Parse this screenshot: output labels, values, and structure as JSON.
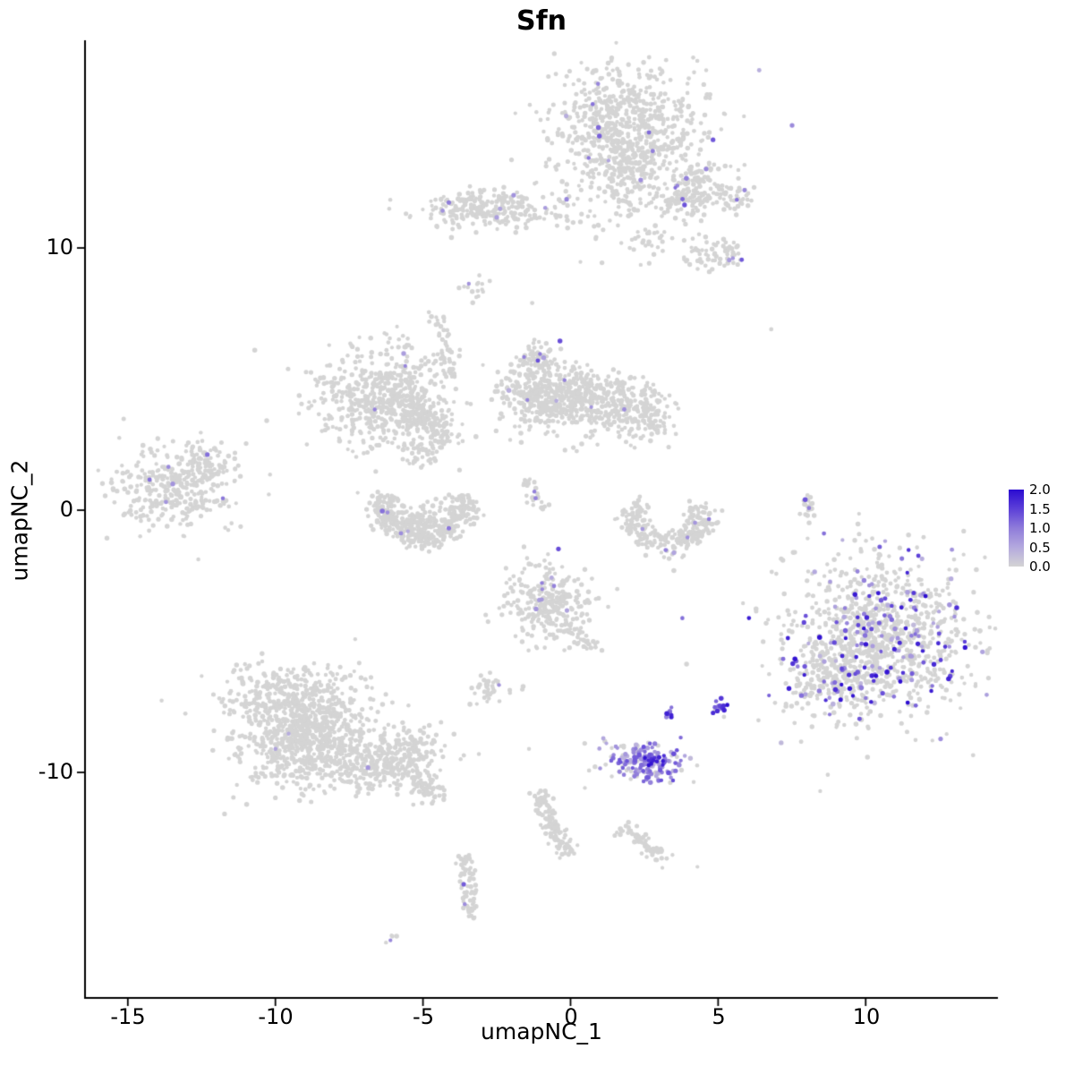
{
  "title": "Sfn",
  "axes": {
    "x": {
      "label": "umapNC_1",
      "ticks": [
        {
          "v": -15,
          "label": "-15"
        },
        {
          "v": -10,
          "label": "-10"
        },
        {
          "v": -5,
          "label": "-5"
        },
        {
          "v": 0,
          "label": "0"
        },
        {
          "v": 5,
          "label": "5"
        },
        {
          "v": 10,
          "label": "10"
        }
      ]
    },
    "y": {
      "label": "umapNC_2",
      "ticks": [
        {
          "v": 10,
          "label": "10"
        },
        {
          "v": 0,
          "label": "0"
        },
        {
          "v": -10,
          "label": "-10"
        }
      ]
    }
  },
  "legend": {
    "labels": [
      "2.0",
      "1.5",
      "1.0",
      "0.5",
      "0.0"
    ]
  },
  "chart_data": {
    "type": "scatter",
    "title": "Sfn",
    "xlabel": "umapNC_1",
    "ylabel": "umapNC_2",
    "xlim": [
      -16.45,
      14.48
    ],
    "ylim": [
      -18.6,
      17.92
    ],
    "grid": false,
    "legend_position": "right",
    "point_color_scale": {
      "domain": [
        0,
        2
      ],
      "stops": [
        [
          0,
          "#D4D4D4"
        ],
        [
          0.5,
          "#B4A9DE"
        ],
        [
          1,
          "#8F7CDA"
        ],
        [
          1.5,
          "#5C40D8"
        ],
        [
          2,
          "#2B0BD1"
        ]
      ]
    },
    "background_point_color": "#D4D4D4",
    "seed": 42,
    "clusters": [
      {
        "type": "gauss",
        "cx": 1.9,
        "cy": 14.4,
        "sx": 1.15,
        "sy": 1.3,
        "n": 650,
        "frac": 0.015,
        "emin": 0.4,
        "emax": 1.3
      },
      {
        "type": "gauss",
        "cx": 1.9,
        "cy": 14.4,
        "sx": 1.9,
        "sy": 1.9,
        "n": 110,
        "frac": 0.01,
        "emin": 0.4,
        "emax": 1.0
      },
      {
        "type": "gauss",
        "cx": 1.9,
        "cy": 12.7,
        "sx": 0.5,
        "sy": 0.6,
        "n": 80,
        "frac": 0.01,
        "emin": 0.4,
        "emax": 1.0
      },
      {
        "type": "gauss",
        "cx": 4.1,
        "cy": 12.2,
        "sx": 0.55,
        "sy": 0.45,
        "n": 130,
        "frac": 0.03,
        "emin": 0.5,
        "emax": 1.5
      },
      {
        "type": "gauss",
        "cx": 5.7,
        "cy": 12.0,
        "sx": 0.35,
        "sy": 0.3,
        "n": 45,
        "frac": 0.06,
        "emin": 0.8,
        "emax": 1.4
      },
      {
        "type": "line",
        "x0": 3.0,
        "y0": 11.5,
        "x1": 4.0,
        "y1": 12.0,
        "w": 0.25,
        "n": 35,
        "frac": 0,
        "emin": 0,
        "emax": 0
      },
      {
        "type": "gauss",
        "cx": -2.3,
        "cy": 11.4,
        "sx": 1.5,
        "sy": 0.38,
        "n": 210,
        "frac": 0.02,
        "emin": 0.5,
        "emax": 1.2
      },
      {
        "type": "gauss",
        "cx": -3.4,
        "cy": 11.7,
        "sx": 0.4,
        "sy": 0.3,
        "n": 60,
        "frac": 0.03,
        "emin": 0.5,
        "emax": 1.0
      },
      {
        "type": "gauss",
        "cx": 2.6,
        "cy": 10.2,
        "sx": 0.35,
        "sy": 0.3,
        "n": 28,
        "frac": 0,
        "emin": 0,
        "emax": 0
      },
      {
        "type": "gauss",
        "cx": 4.9,
        "cy": 9.7,
        "sx": 0.5,
        "sy": 0.35,
        "n": 70,
        "frac": 0.04,
        "emin": 0.6,
        "emax": 1.2
      },
      {
        "type": "gauss",
        "cx": -3.0,
        "cy": 8.6,
        "sx": 0.25,
        "sy": 0.25,
        "n": 16,
        "frac": 0.08,
        "emin": 0.6,
        "emax": 1.0
      },
      {
        "type": "gauss",
        "cx": -1.2,
        "cy": 5.7,
        "sx": 0.35,
        "sy": 0.35,
        "n": 70,
        "frac": 0.06,
        "emin": 0.6,
        "emax": 1.4
      },
      {
        "type": "gauss",
        "cx": -1.0,
        "cy": 4.35,
        "sx": 0.8,
        "sy": 0.65,
        "n": 330,
        "frac": 0.01,
        "emin": 0.4,
        "emax": 1.0
      },
      {
        "type": "gauss",
        "cx": 1.5,
        "cy": 3.9,
        "sx": 0.9,
        "sy": 0.6,
        "n": 300,
        "frac": 0.01,
        "emin": 0.4,
        "emax": 1.0
      },
      {
        "type": "gauss",
        "cx": 0.2,
        "cy": 4.6,
        "sx": 0.5,
        "sy": 0.5,
        "n": 120,
        "frac": 0,
        "emin": 0,
        "emax": 0
      },
      {
        "type": "gauss",
        "cx": 2.8,
        "cy": 3.6,
        "sx": 0.3,
        "sy": 0.4,
        "n": 50,
        "frac": 0,
        "emin": 0,
        "emax": 0
      },
      {
        "type": "gauss",
        "cx": -6.4,
        "cy": 4.3,
        "sx": 1.1,
        "sy": 0.95,
        "n": 520,
        "frac": 0.006,
        "emin": 0.4,
        "emax": 1.0
      },
      {
        "type": "line",
        "x0": -4.6,
        "y0": 7.6,
        "x1": -4.0,
        "y1": 4.9,
        "w": 0.18,
        "n": 55,
        "frac": 0,
        "emin": 0,
        "emax": 0
      },
      {
        "type": "gauss",
        "cx": -5.2,
        "cy": 3.6,
        "sx": 0.45,
        "sy": 0.4,
        "n": 140,
        "frac": 0,
        "emin": 0,
        "emax": 0
      },
      {
        "type": "gauss",
        "cx": -4.4,
        "cy": 2.9,
        "sx": 0.3,
        "sy": 0.3,
        "n": 50,
        "frac": 0,
        "emin": 0,
        "emax": 0
      },
      {
        "type": "gauss",
        "cx": -5.0,
        "cy": 2.2,
        "sx": 0.35,
        "sy": 0.3,
        "n": 40,
        "frac": 0.03,
        "emin": 0.5,
        "emax": 0.9
      },
      {
        "type": "ring",
        "cx": -5.0,
        "cy": 0.2,
        "rx": 1.35,
        "ry": 1.15,
        "a0": 160,
        "a1": 380,
        "w": 0.33,
        "n": 380,
        "frac": 0.015,
        "emin": 0.4,
        "emax": 1.1
      },
      {
        "type": "gauss",
        "cx": -5.0,
        "cy": -0.35,
        "sx": 0.7,
        "sy": 0.35,
        "n": 80,
        "frac": 0.01,
        "emin": 0.4,
        "emax": 0.9
      },
      {
        "type": "gauss",
        "cx": -13.4,
        "cy": 0.8,
        "sx": 1.05,
        "sy": 0.8,
        "n": 330,
        "frac": 0.012,
        "emin": 0.5,
        "emax": 1.2
      },
      {
        "type": "gauss",
        "cx": -12.3,
        "cy": 1.8,
        "sx": 0.4,
        "sy": 0.35,
        "n": 50,
        "frac": 0.02,
        "emin": 0.5,
        "emax": 1.0
      },
      {
        "type": "line",
        "x0": -1.5,
        "y0": 1.1,
        "x1": -0.85,
        "y1": 0.0,
        "w": 0.12,
        "n": 26,
        "frac": 0.05,
        "emin": 0.9,
        "emax": 1.1
      },
      {
        "type": "ring",
        "cx": 3.3,
        "cy": -0.3,
        "rx": 1.15,
        "ry": 0.95,
        "a0": 150,
        "a1": 390,
        "w": 0.3,
        "n": 270,
        "frac": 0.012,
        "emin": 0.5,
        "emax": 1.0
      },
      {
        "type": "line",
        "x0": 7.95,
        "y0": 0.6,
        "x1": 8.1,
        "y1": -0.3,
        "w": 0.1,
        "n": 22,
        "frac": 0.1,
        "emin": 0.8,
        "emax": 1.6
      },
      {
        "type": "gauss",
        "cx": -0.8,
        "cy": -3.5,
        "sx": 0.8,
        "sy": 0.75,
        "n": 270,
        "frac": 0.05,
        "emin": 0.4,
        "emax": 1.4
      },
      {
        "type": "line",
        "x0": -0.2,
        "y0": -4.4,
        "x1": 0.8,
        "y1": -5.2,
        "w": 0.15,
        "n": 40,
        "frac": 0.02,
        "emin": 0.5,
        "emax": 1.0
      },
      {
        "type": "gauss",
        "cx": -2.7,
        "cy": -6.8,
        "sx": 0.4,
        "sy": 0.3,
        "n": 40,
        "frac": 0.05,
        "emin": 0.6,
        "emax": 1.0
      },
      {
        "type": "gauss",
        "cx": 10.5,
        "cy": -4.9,
        "sx": 1.5,
        "sy": 1.35,
        "n": 850,
        "frac": 0.15,
        "emin": 0.3,
        "emax": 2.0
      },
      {
        "type": "gauss",
        "cx": 10.4,
        "cy": -4.8,
        "sx": 2.1,
        "sy": 1.9,
        "n": 220,
        "frac": 0.1,
        "emin": 0.3,
        "emax": 1.8
      },
      {
        "type": "gauss",
        "cx": 8.9,
        "cy": -6.6,
        "sx": 0.7,
        "sy": 0.6,
        "n": 150,
        "frac": 0.12,
        "emin": 0.3,
        "emax": 2.0
      },
      {
        "type": "gauss",
        "cx": -9.1,
        "cy": -8.4,
        "sx": 1.15,
        "sy": 1.0,
        "n": 850,
        "frac": 0.002,
        "emin": 0.4,
        "emax": 0.8
      },
      {
        "type": "gauss",
        "cx": -6.6,
        "cy": -9.6,
        "sx": 1.1,
        "sy": 0.55,
        "n": 320,
        "frac": 0.003,
        "emin": 0.4,
        "emax": 0.8
      },
      {
        "type": "line",
        "x0": -5.6,
        "y0": -10.1,
        "x1": -4.4,
        "y1": -10.8,
        "w": 0.2,
        "n": 70,
        "frac": 0,
        "emin": 0,
        "emax": 0
      },
      {
        "type": "gauss",
        "cx": -9.3,
        "cy": -6.7,
        "sx": 1.4,
        "sy": 0.5,
        "n": 130,
        "frac": 0,
        "emin": 0,
        "emax": 0
      },
      {
        "type": "gauss",
        "cx": -5.3,
        "cy": -9.0,
        "sx": 0.5,
        "sy": 0.5,
        "n": 60,
        "frac": 0,
        "emin": 0,
        "emax": 0
      },
      {
        "type": "gauss",
        "cx": 2.5,
        "cy": -9.6,
        "sx": 0.55,
        "sy": 0.38,
        "n": 150,
        "frac": 0.93,
        "emin": 0.3,
        "emax": 1.4
      },
      {
        "type": "gauss",
        "cx": 2.9,
        "cy": -9.5,
        "sx": 0.25,
        "sy": 0.2,
        "n": 12,
        "frac": 1.0,
        "emin": 1.6,
        "emax": 2.0
      },
      {
        "type": "gauss",
        "cx": 2.2,
        "cy": -9.7,
        "sx": 0.85,
        "sy": 0.5,
        "n": 40,
        "frac": 0.1,
        "emin": 0.4,
        "emax": 0.9
      },
      {
        "type": "gauss",
        "cx": 3.35,
        "cy": -7.75,
        "sx": 0.12,
        "sy": 0.15,
        "n": 10,
        "frac": 0.85,
        "emin": 0.8,
        "emax": 2.0
      },
      {
        "type": "gauss",
        "cx": 5.05,
        "cy": -7.5,
        "sx": 0.18,
        "sy": 0.22,
        "n": 16,
        "frac": 0.85,
        "emin": 0.5,
        "emax": 2.0
      },
      {
        "type": "line",
        "x0": -1.1,
        "y0": -10.8,
        "x1": -0.1,
        "y1": -13.2,
        "w": 0.18,
        "n": 120,
        "frac": 0.01,
        "emin": 0.5,
        "emax": 0.8
      },
      {
        "type": "line",
        "x0": 1.7,
        "y0": -12.1,
        "x1": 3.1,
        "y1": -13.2,
        "w": 0.18,
        "n": 70,
        "frac": 0,
        "emin": 0,
        "emax": 0
      },
      {
        "type": "line",
        "x0": -3.55,
        "y0": -13.2,
        "x1": -3.35,
        "y1": -15.6,
        "w": 0.15,
        "n": 70,
        "frac": 0.04,
        "emin": 0.8,
        "emax": 1.3
      },
      {
        "type": "gauss",
        "cx": -6.1,
        "cy": -16.3,
        "sx": 0.15,
        "sy": 0.1,
        "n": 5,
        "frac": 0.2,
        "emin": 0.8,
        "emax": 1.0
      }
    ],
    "singles": [
      [
        6.8,
        6.9,
        0
      ],
      [
        -10.7,
        6.1,
        0
      ],
      [
        5.8,
        9.55,
        1.3
      ],
      [
        -5.6,
        5.5,
        0.9
      ],
      [
        3.5,
        -2.3,
        0
      ],
      [
        4.3,
        -13.6,
        0
      ],
      [
        -1.3,
        7.9,
        0
      ],
      [
        7.6,
        -1.6,
        0
      ]
    ]
  }
}
